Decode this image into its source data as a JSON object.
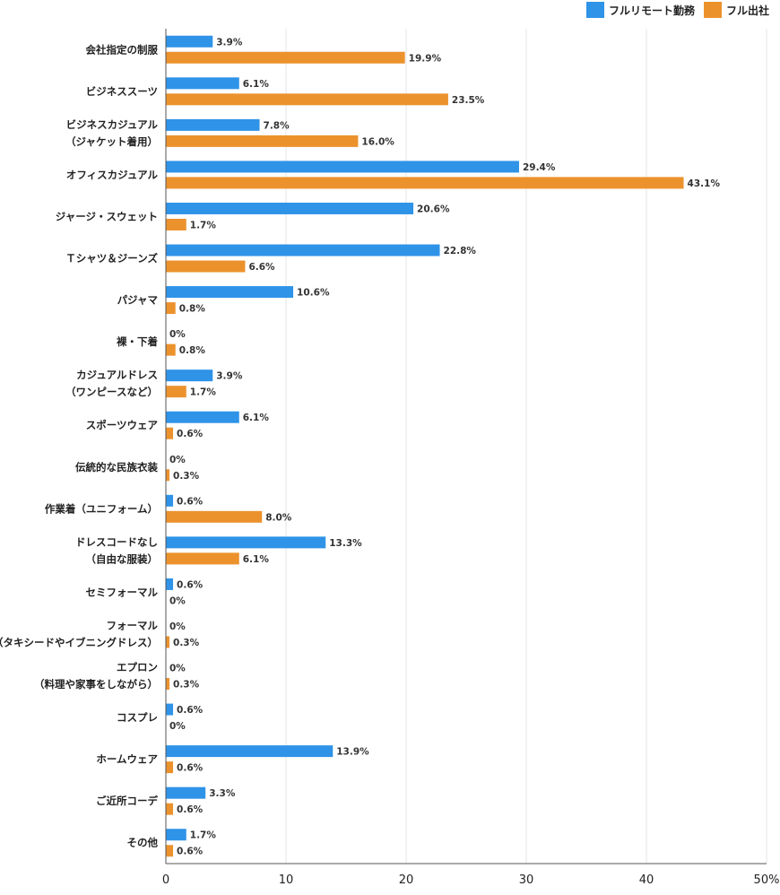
{
  "legend": {
    "remote_label": "フルリモート勤務",
    "office_label": "フル出社"
  },
  "colors": {
    "remote": "#2f93e8",
    "office": "#ec922d",
    "grid": "#e6e6e6",
    "axis": "#555555"
  },
  "chart_data": {
    "type": "bar",
    "orientation": "horizontal",
    "categories": [
      [
        "会社指定の制服"
      ],
      [
        "ビジネススーツ"
      ],
      [
        "ビジネスカジュアル",
        "（ジャケット着用）"
      ],
      [
        "オフィスカジュアル"
      ],
      [
        "ジャージ・スウェット"
      ],
      [
        "Ｔシャツ＆ジーンズ"
      ],
      [
        "パジャマ"
      ],
      [
        "裸・下着"
      ],
      [
        "カジュアルドレス",
        "（ワンピースなど）"
      ],
      [
        "スポーツウェア"
      ],
      [
        "伝統的な民族衣装"
      ],
      [
        "作業着（ユニフォーム）"
      ],
      [
        "ドレスコードなし",
        "（自由な服装）"
      ],
      [
        "セミフォーマル"
      ],
      [
        "フォーマル",
        "（タキシードやイブニングドレス）"
      ],
      [
        "エプロン",
        "（料理や家事をしながら）"
      ],
      [
        "コスプレ"
      ],
      [
        "ホームウェア"
      ],
      [
        "ご近所コーデ"
      ],
      [
        "その他"
      ]
    ],
    "series": [
      {
        "name": "フルリモート勤務",
        "values": [
          3.9,
          6.1,
          7.8,
          29.4,
          20.6,
          22.8,
          10.6,
          0,
          3.9,
          6.1,
          0,
          0.6,
          13.3,
          0.6,
          0,
          0,
          0.6,
          13.9,
          3.3,
          1.7
        ],
        "labels": [
          "3.9%",
          "6.1%",
          "7.8%",
          "29.4%",
          "20.6%",
          "22.8%",
          "10.6%",
          "0%",
          "3.9%",
          "6.1%",
          "0%",
          "0.6%",
          "13.3%",
          "0.6%",
          "0%",
          "0%",
          "0.6%",
          "13.9%",
          "3.3%",
          "1.7%"
        ]
      },
      {
        "name": "フル出社",
        "values": [
          19.9,
          23.5,
          16.0,
          43.1,
          1.7,
          6.6,
          0.8,
          0.8,
          1.7,
          0.6,
          0.3,
          8.0,
          6.1,
          0,
          0.3,
          0.3,
          0,
          0.6,
          0.6,
          0.6
        ],
        "labels": [
          "19.9%",
          "23.5%",
          "16.0%",
          "43.1%",
          "1.7%",
          "6.6%",
          "0.8%",
          "0.8%",
          "1.7%",
          "0.6%",
          "0.3%",
          "8.0%",
          "6.1%",
          "0%",
          "0.3%",
          "0.3%",
          "0%",
          "0.6%",
          "0.6%",
          "0.6%"
        ]
      }
    ],
    "xlim": [
      0,
      50
    ],
    "xticks": [
      0,
      10,
      20,
      30,
      40,
      50
    ],
    "xtick_labels": [
      "0",
      "10",
      "20",
      "30",
      "40",
      "50%"
    ],
    "grid": true,
    "legend_position": "top-right"
  }
}
